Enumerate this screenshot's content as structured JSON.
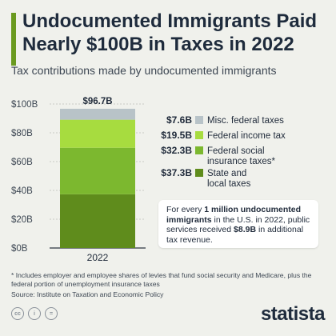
{
  "title": "Undocumented Immigrants Paid Nearly $100B in Taxes in 2022",
  "subtitle": "Tax contributions made by undocumented immigrants",
  "chart_data": {
    "type": "bar",
    "stacked": true,
    "categories": [
      "2022"
    ],
    "ylim": [
      0,
      100
    ],
    "yticks": [
      "$0B",
      "$20B",
      "$40B",
      "$60B",
      "$80B",
      "$100B"
    ],
    "total_label": "$96.7B",
    "series": [
      {
        "name": "State and local taxes",
        "value_label": "$37.3B",
        "values": [
          37.3
        ],
        "color": "#5f8c1c"
      },
      {
        "name": "Federal social insurance taxes*",
        "value_label": "$32.3B",
        "values": [
          32.3
        ],
        "color": "#7cb82f"
      },
      {
        "name": "Federal income tax",
        "value_label": "$19.5B",
        "values": [
          19.5
        ],
        "color": "#a7dc3f"
      },
      {
        "name": "Misc. federal taxes",
        "value_label": "$7.6B",
        "values": [
          7.6
        ],
        "color": "#b8c3c8"
      }
    ]
  },
  "callout": {
    "part1": "For every ",
    "bold1": "1 million undocumented immigrants",
    "part2": " in the U.S. in 2022, public services received ",
    "bold2": "$8.9B",
    "part3": " in additional tax revenue."
  },
  "footnote": "* Includes employer and employee shares of levies that fund social security and Medicare, plus the federal portion of unemployment insurance taxes",
  "source": "Source: Institute on Taxation and Economic Policy",
  "icons": [
    "cc-icon",
    "info-icon",
    "equals-icon"
  ],
  "icon_glyphs": [
    "cc",
    "i",
    "="
  ],
  "logo": "statista"
}
